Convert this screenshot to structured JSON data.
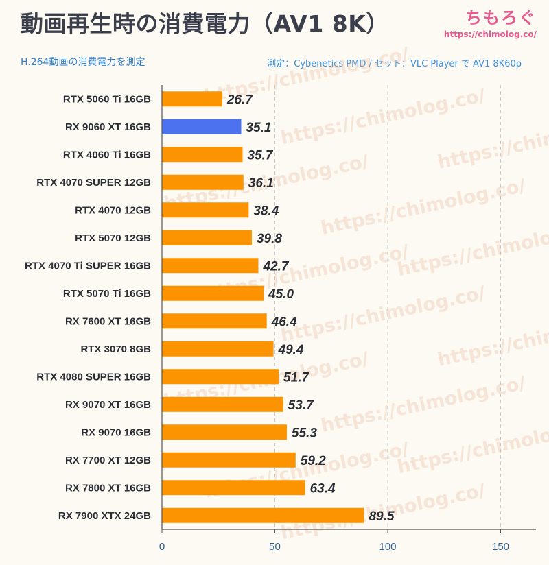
{
  "header": {
    "title": "動画再生時の消費電力（AV1 8K）",
    "subtitle": "H.264動画の消費電力を測定",
    "source": "測定：Cybenetics PMD / セット：VLC Player で AV1 8K60p",
    "brand_name": "ちもろぐ",
    "brand_url": "https://chimolog.co/",
    "watermark": "https://chimolog.co/"
  },
  "colors": {
    "bar_default": "#fb9400",
    "bar_highlight": "#4c72f0",
    "gridline": "#c8c8c8",
    "axis": "#555555"
  },
  "chart_data": {
    "type": "bar",
    "orientation": "horizontal",
    "title": "動画再生時の消費電力（AV1 8K）",
    "subtitle": "H.264動画の消費電力を測定",
    "categories": [
      "RTX 5060 Ti 16GB",
      "RX 9060 XT 16GB",
      "RTX 4060 Ti 16GB",
      "RTX 4070 SUPER 12GB",
      "RTX 4070 12GB",
      "RTX 5070 12GB",
      "RTX 4070 Ti SUPER 16GB",
      "RTX 5070 Ti 16GB",
      "RX 7600 XT 16GB",
      "RTX 3070 8GB",
      "RTX 4080 SUPER 16GB",
      "RX 9070 XT 16GB",
      "RX 9070 16GB",
      "RX 7700 XT 12GB",
      "RX 7800 XT 16GB",
      "RX 7900 XTX 24GB"
    ],
    "values": [
      26.7,
      35.1,
      35.7,
      36.1,
      38.4,
      39.8,
      42.7,
      45.0,
      46.4,
      49.4,
      51.7,
      53.7,
      55.3,
      59.2,
      63.4,
      89.5
    ],
    "value_labels": [
      "26.7",
      "35.1",
      "35.7",
      "36.1",
      "38.4",
      "39.8",
      "42.7",
      "45.0",
      "46.4",
      "49.4",
      "51.7",
      "53.7",
      "55.3",
      "59.2",
      "63.4",
      "89.5"
    ],
    "highlight_index": 1,
    "xlim": [
      0,
      155
    ],
    "xticks": [
      0,
      50,
      100,
      150
    ],
    "xtick_labels": [
      "0",
      "50",
      "100",
      "150"
    ],
    "grid": "vertical-dashed",
    "legend": "none"
  }
}
